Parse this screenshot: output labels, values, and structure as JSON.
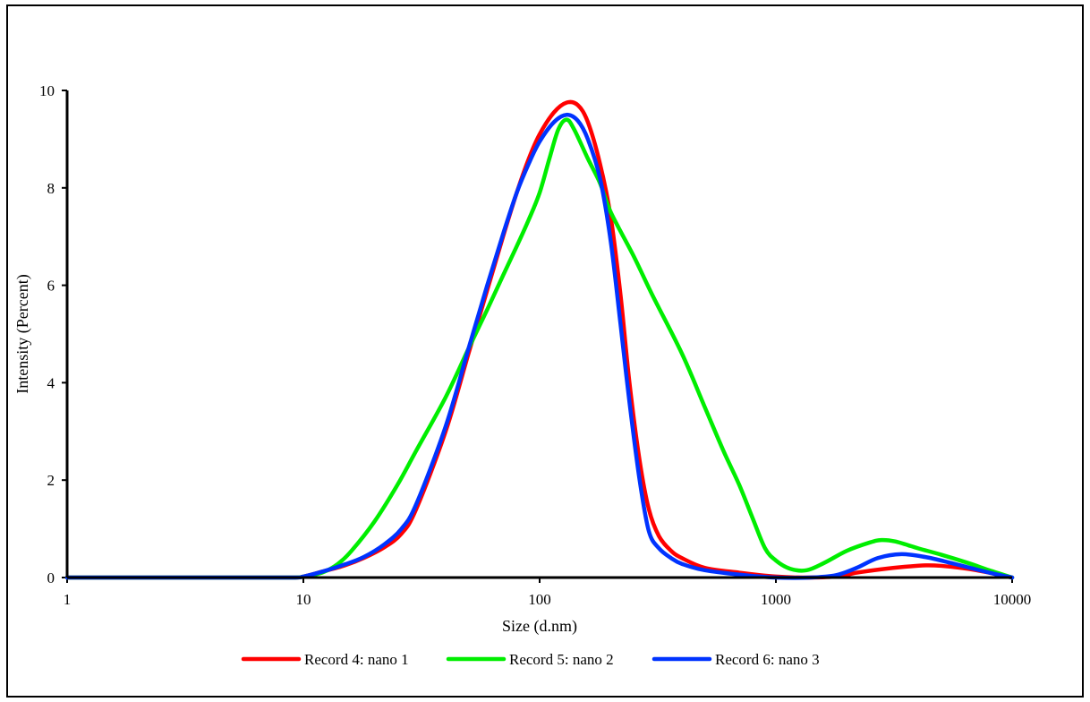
{
  "chart_data": {
    "type": "line",
    "title": "",
    "xlabel": "Size (d.nm)",
    "ylabel": "Intensity (Percent)",
    "x_scale": "log",
    "xlim": [
      1,
      10000
    ],
    "ylim": [
      0,
      10
    ],
    "grid": false,
    "legend_position": "bottom",
    "x_ticks": [
      1,
      10,
      100,
      1000,
      10000
    ],
    "x_tick_labels": [
      "1",
      "10",
      "100",
      "1000",
      "10000"
    ],
    "y_ticks": [
      0,
      2,
      4,
      6,
      8,
      10
    ],
    "y_tick_labels": [
      "0",
      "2",
      "4",
      "6",
      "8",
      "10"
    ],
    "series": [
      {
        "name": "Record 4: nano 1",
        "color": "#ff0000",
        "points": [
          [
            1,
            0
          ],
          [
            5,
            0
          ],
          [
            9,
            0
          ],
          [
            10,
            0.02
          ],
          [
            12,
            0.12
          ],
          [
            15,
            0.25
          ],
          [
            18,
            0.4
          ],
          [
            22,
            0.62
          ],
          [
            26,
            0.9
          ],
          [
            30,
            1.4
          ],
          [
            40,
            3.0
          ],
          [
            50,
            4.6
          ],
          [
            60,
            5.9
          ],
          [
            70,
            7.0
          ],
          [
            80,
            7.9
          ],
          [
            90,
            8.6
          ],
          [
            100,
            9.1
          ],
          [
            115,
            9.55
          ],
          [
            130,
            9.75
          ],
          [
            145,
            9.7
          ],
          [
            160,
            9.35
          ],
          [
            180,
            8.5
          ],
          [
            200,
            7.4
          ],
          [
            220,
            5.8
          ],
          [
            240,
            4.0
          ],
          [
            265,
            2.4
          ],
          [
            290,
            1.4
          ],
          [
            320,
            0.85
          ],
          [
            360,
            0.55
          ],
          [
            400,
            0.4
          ],
          [
            500,
            0.2
          ],
          [
            700,
            0.1
          ],
          [
            1000,
            0.02
          ],
          [
            1300,
            0
          ],
          [
            1800,
            0.02
          ],
          [
            2200,
            0.1
          ],
          [
            2800,
            0.17
          ],
          [
            3500,
            0.22
          ],
          [
            4300,
            0.25
          ],
          [
            5000,
            0.24
          ],
          [
            6500,
            0.18
          ],
          [
            8000,
            0.1
          ],
          [
            10000,
            0
          ]
        ]
      },
      {
        "name": "Record 5: nano 2",
        "color": "#00ee00",
        "points": [
          [
            1,
            0
          ],
          [
            5,
            0
          ],
          [
            9,
            0
          ],
          [
            10,
            0.02
          ],
          [
            12,
            0.1
          ],
          [
            14,
            0.28
          ],
          [
            16,
            0.55
          ],
          [
            20,
            1.15
          ],
          [
            25,
            1.9
          ],
          [
            30,
            2.6
          ],
          [
            40,
            3.7
          ],
          [
            50,
            4.7
          ],
          [
            60,
            5.5
          ],
          [
            70,
            6.2
          ],
          [
            80,
            6.8
          ],
          [
            90,
            7.35
          ],
          [
            100,
            7.9
          ],
          [
            110,
            8.6
          ],
          [
            120,
            9.2
          ],
          [
            130,
            9.4
          ],
          [
            140,
            9.2
          ],
          [
            160,
            8.6
          ],
          [
            180,
            8.1
          ],
          [
            200,
            7.5
          ],
          [
            250,
            6.6
          ],
          [
            300,
            5.8
          ],
          [
            400,
            4.6
          ],
          [
            500,
            3.5
          ],
          [
            600,
            2.6
          ],
          [
            700,
            1.9
          ],
          [
            800,
            1.2
          ],
          [
            900,
            0.6
          ],
          [
            1000,
            0.35
          ],
          [
            1150,
            0.18
          ],
          [
            1350,
            0.15
          ],
          [
            1600,
            0.3
          ],
          [
            2000,
            0.55
          ],
          [
            2500,
            0.72
          ],
          [
            2800,
            0.77
          ],
          [
            3200,
            0.74
          ],
          [
            4000,
            0.6
          ],
          [
            5000,
            0.47
          ],
          [
            6500,
            0.3
          ],
          [
            8000,
            0.15
          ],
          [
            10000,
            0
          ]
        ]
      },
      {
        "name": "Record 6: nano 3",
        "color": "#0033ff",
        "points": [
          [
            1,
            0
          ],
          [
            5,
            0
          ],
          [
            9,
            0
          ],
          [
            10,
            0.02
          ],
          [
            12,
            0.12
          ],
          [
            15,
            0.27
          ],
          [
            18,
            0.42
          ],
          [
            22,
            0.68
          ],
          [
            26,
            1.0
          ],
          [
            30,
            1.5
          ],
          [
            40,
            3.1
          ],
          [
            50,
            4.7
          ],
          [
            60,
            6.0
          ],
          [
            70,
            7.05
          ],
          [
            80,
            7.9
          ],
          [
            90,
            8.5
          ],
          [
            100,
            8.95
          ],
          [
            115,
            9.35
          ],
          [
            130,
            9.5
          ],
          [
            145,
            9.38
          ],
          [
            160,
            9.0
          ],
          [
            180,
            8.2
          ],
          [
            200,
            6.9
          ],
          [
            220,
            5.2
          ],
          [
            240,
            3.6
          ],
          [
            265,
            2.0
          ],
          [
            290,
            0.95
          ],
          [
            320,
            0.6
          ],
          [
            360,
            0.4
          ],
          [
            400,
            0.28
          ],
          [
            500,
            0.15
          ],
          [
            700,
            0.06
          ],
          [
            1000,
            0
          ],
          [
            1400,
            0
          ],
          [
            1800,
            0.05
          ],
          [
            2200,
            0.2
          ],
          [
            2700,
            0.4
          ],
          [
            3400,
            0.48
          ],
          [
            4300,
            0.42
          ],
          [
            5500,
            0.3
          ],
          [
            7000,
            0.17
          ],
          [
            8500,
            0.07
          ],
          [
            10000,
            0
          ]
        ]
      }
    ]
  }
}
